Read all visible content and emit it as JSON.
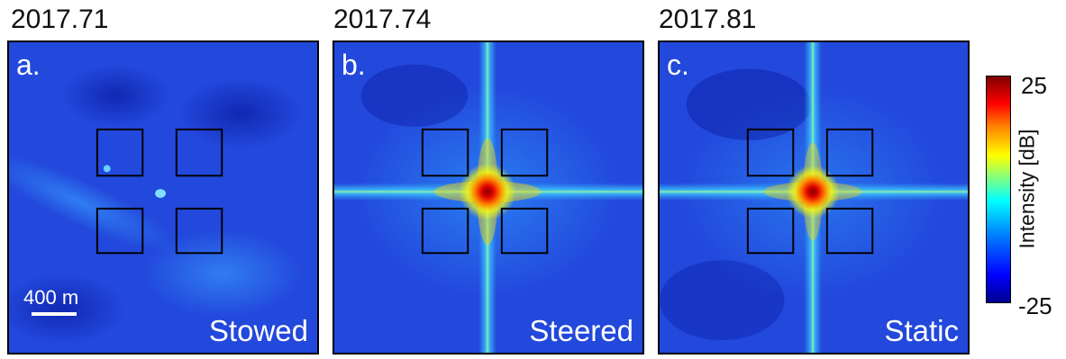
{
  "panels": [
    {
      "year": "2017.71",
      "letter": "a.",
      "mode": "Stowed",
      "cross": false
    },
    {
      "year": "2017.74",
      "letter": "b.",
      "mode": "Steered",
      "cross": true
    },
    {
      "year": "2017.81",
      "letter": "c.",
      "mode": "Static",
      "cross": true
    }
  ],
  "scalebar": {
    "label": "400 m"
  },
  "colorbar": {
    "max": "25",
    "min": "-25",
    "label": "Intensity [dB]"
  }
}
